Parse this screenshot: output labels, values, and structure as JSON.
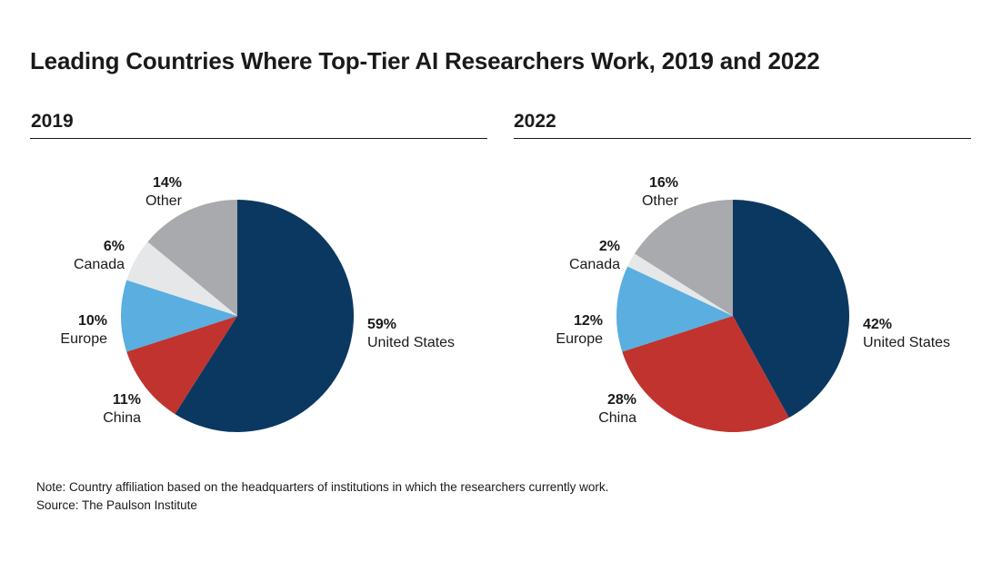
{
  "title": "Leading Countries Where Top-Tier AI Researchers Work, 2019 and 2022",
  "note": "Note: Country affiliation based on the headquarters of institutions in which the researchers currently work.",
  "source": "Source: The Paulson Institute",
  "colors": {
    "United States": "#0b3861",
    "China": "#c0332f",
    "Europe": "#5aaee0",
    "Canada": "#e6e7e8",
    "Other": "#a8aaad"
  },
  "chart_data": [
    {
      "type": "pie",
      "title": "2019",
      "slices": [
        {
          "label": "United States",
          "value": 59,
          "display": "59%"
        },
        {
          "label": "China",
          "value": 11,
          "display": "11%"
        },
        {
          "label": "Europe",
          "value": 10,
          "display": "10%"
        },
        {
          "label": "Canada",
          "value": 6,
          "display": "6%"
        },
        {
          "label": "Other",
          "value": 14,
          "display": "14%"
        }
      ]
    },
    {
      "type": "pie",
      "title": "2022",
      "slices": [
        {
          "label": "United States",
          "value": 42,
          "display": "42%"
        },
        {
          "label": "China",
          "value": 28,
          "display": "28%"
        },
        {
          "label": "Europe",
          "value": 12,
          "display": "12%"
        },
        {
          "label": "Canada",
          "value": 2,
          "display": "2%"
        },
        {
          "label": "Other",
          "value": 16,
          "display": "16%"
        }
      ]
    }
  ]
}
